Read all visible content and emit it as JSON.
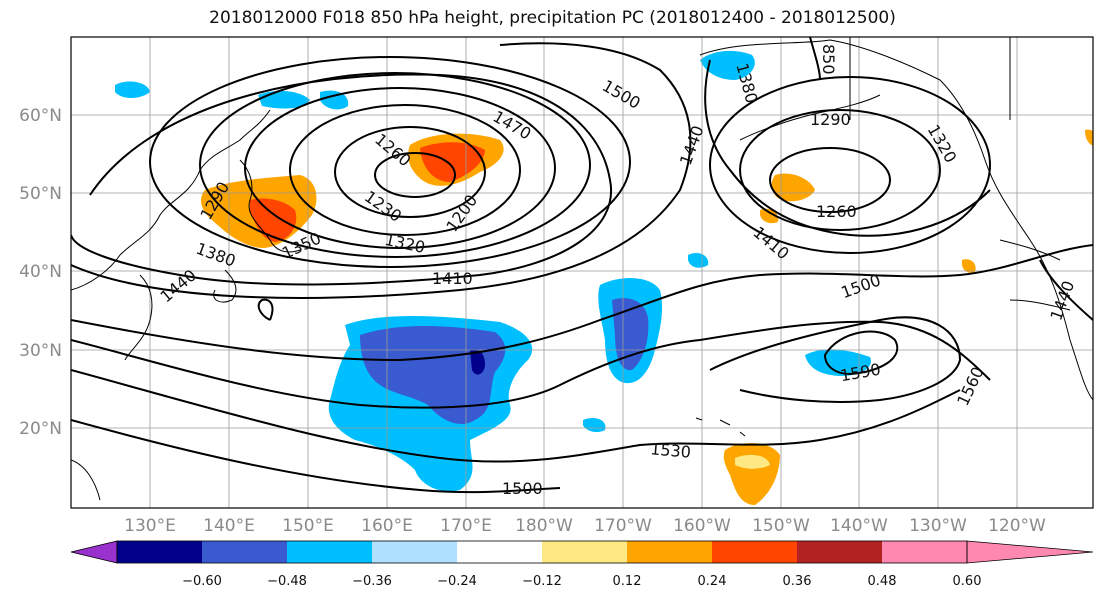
{
  "title": "2018012000 F018 850 hPa height, precipitation PC (2018012400 - 2018012500)",
  "lat_labels": [
    "60°N",
    "50°N",
    "40°N",
    "30°N",
    "20°N"
  ],
  "lon_labels": [
    "130°E",
    "140°E",
    "150°E",
    "160°E",
    "170°E",
    "180°W",
    "170°W",
    "160°W",
    "150°W",
    "140°W",
    "130°W",
    "120°W"
  ],
  "contour_labels": [
    "1290",
    "1260",
    "1230",
    "1200",
    "1320",
    "1350",
    "1380",
    "1410",
    "1470",
    "1500",
    "1380",
    "1440",
    "1410",
    "1290",
    "1320",
    "1260",
    "1500",
    "1440",
    "1590",
    "1560",
    "1530",
    "1500",
    "1440",
    "850"
  ],
  "colorbar": {
    "ticks": [
      "−0.60",
      "−0.48",
      "−0.36",
      "−0.24",
      "−0.12",
      "0.12",
      "0.24",
      "0.36",
      "0.48",
      "0.60"
    ],
    "colors": [
      "#9932cc",
      "#00008b",
      "#3a5bcf",
      "#00bfff",
      "#b0e0ff",
      "#ffffff",
      "#ffe984",
      "#ffa500",
      "#ff4500",
      "#b22222",
      "#ff88b0"
    ]
  }
}
